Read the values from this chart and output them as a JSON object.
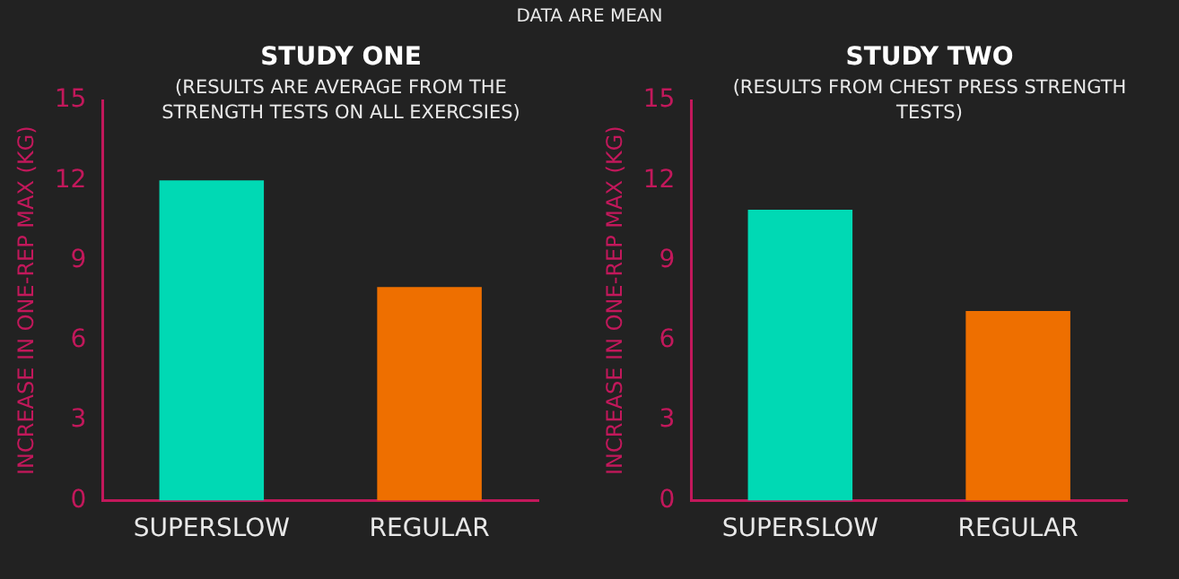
{
  "chart_data": [
    {
      "type": "bar",
      "title": "STUDY ONE",
      "subtitle": "(RESULTS ARE AVERAGE FROM THE STRENGTH TESTS ON ALL EXERCSIES)",
      "ylabel": "INCREASE IN ONE-REP MAX (KG)",
      "annotations": [
        "DATA ARE MEAN"
      ],
      "categories": [
        "SUPERSLOW",
        "REGULAR"
      ],
      "values": [
        12,
        8
      ],
      "colors": [
        "#00d9b4",
        "#ee6f00"
      ],
      "ylim": [
        0,
        15
      ],
      "yticks": [
        0,
        3,
        6,
        9,
        12,
        15
      ]
    },
    {
      "type": "bar",
      "title": "STUDY TWO",
      "subtitle": "(RESULTS FROM CHEST PRESS STRENGTH TESTS)",
      "ylabel": "INCREASE IN ONE-REP MAX (KG)",
      "categories": [
        "SUPERSLOW",
        "REGULAR"
      ],
      "values": [
        10.9,
        7.1
      ],
      "colors": [
        "#00d9b4",
        "#ee6f00"
      ],
      "ylim": [
        0,
        15
      ],
      "yticks": [
        0,
        3,
        6,
        9,
        12,
        15
      ]
    }
  ]
}
